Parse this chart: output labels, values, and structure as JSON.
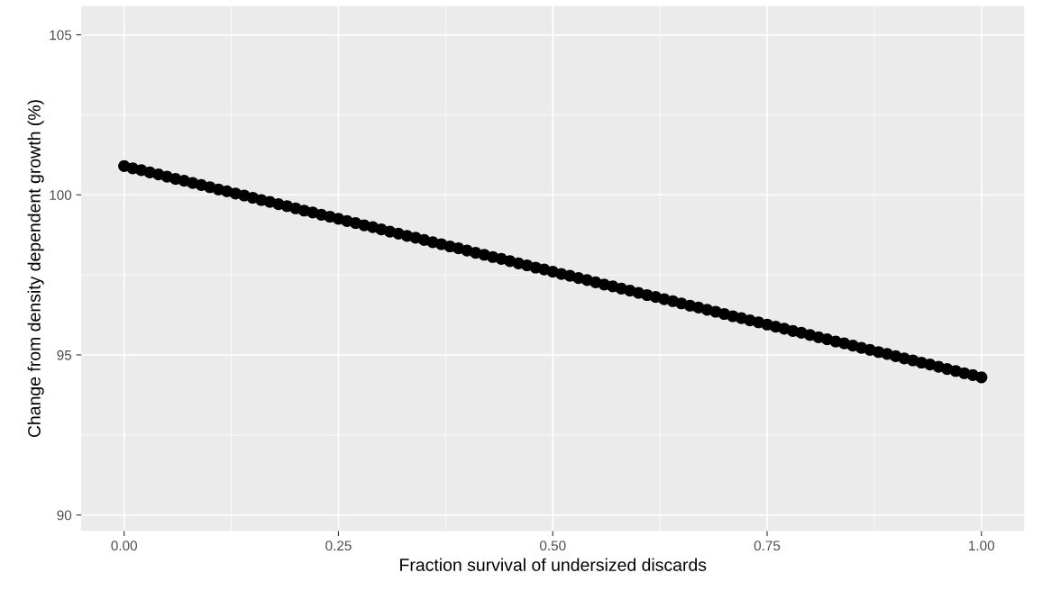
{
  "chart_data": {
    "type": "scatter",
    "xlabel": "Fraction survival of undersized discards",
    "ylabel": "Change from density dependent growth (%)",
    "x": [
      0,
      0.01,
      0.02,
      0.03,
      0.04,
      0.05,
      0.06,
      0.07,
      0.08,
      0.09,
      0.1,
      0.11,
      0.12,
      0.13,
      0.14,
      0.15,
      0.16,
      0.17,
      0.18,
      0.19,
      0.2,
      0.21,
      0.22,
      0.23,
      0.24,
      0.25,
      0.26,
      0.27,
      0.28,
      0.29,
      0.3,
      0.31,
      0.32,
      0.33,
      0.34,
      0.35,
      0.36,
      0.37,
      0.38,
      0.39,
      0.4,
      0.41,
      0.42,
      0.43,
      0.44,
      0.45,
      0.46,
      0.47,
      0.48,
      0.49,
      0.5,
      0.51,
      0.52,
      0.53,
      0.54,
      0.55,
      0.56,
      0.57,
      0.58,
      0.59,
      0.6,
      0.61,
      0.62,
      0.63,
      0.64,
      0.65,
      0.66,
      0.67,
      0.68,
      0.69,
      0.7,
      0.71,
      0.72,
      0.73,
      0.74,
      0.75,
      0.76,
      0.77,
      0.78,
      0.79,
      0.8,
      0.81,
      0.82,
      0.83,
      0.84,
      0.85,
      0.86,
      0.87,
      0.88,
      0.89,
      0.9,
      0.91,
      0.92,
      0.93,
      0.94,
      0.95,
      0.96,
      0.97,
      0.98,
      0.99,
      1
    ],
    "series": [
      {
        "color": "#000000",
        "values": [
          100.9,
          100.83,
          100.77,
          100.7,
          100.64,
          100.57,
          100.5,
          100.44,
          100.37,
          100.31,
          100.24,
          100.17,
          100.11,
          100.04,
          99.98,
          99.91,
          99.84,
          99.78,
          99.71,
          99.65,
          99.58,
          99.51,
          99.45,
          99.38,
          99.32,
          99.25,
          99.18,
          99.12,
          99.05,
          98.99,
          98.92,
          98.85,
          98.79,
          98.72,
          98.66,
          98.59,
          98.52,
          98.46,
          98.39,
          98.33,
          98.26,
          98.19,
          98.13,
          98.06,
          98.0,
          97.93,
          97.86,
          97.8,
          97.73,
          97.67,
          97.6,
          97.53,
          97.47,
          97.4,
          97.34,
          97.27,
          97.2,
          97.14,
          97.07,
          97.01,
          96.94,
          96.87,
          96.81,
          96.74,
          96.68,
          96.61,
          96.54,
          96.48,
          96.41,
          96.35,
          96.28,
          96.21,
          96.15,
          96.08,
          96.02,
          95.95,
          95.88,
          95.82,
          95.75,
          95.69,
          95.62,
          95.55,
          95.49,
          95.42,
          95.36,
          95.29,
          95.22,
          95.16,
          95.09,
          95.03,
          94.96,
          94.89,
          94.83,
          94.76,
          94.7,
          94.63,
          94.56,
          94.5,
          94.43,
          94.37,
          94.3
        ]
      }
    ],
    "xlim": [
      -0.05,
      1.05
    ],
    "ylim": [
      89.5,
      105.9
    ],
    "xticks": [
      {
        "value": 0,
        "label": "0.00"
      },
      {
        "value": 0.25,
        "label": "0.25"
      },
      {
        "value": 0.5,
        "label": "0.50"
      },
      {
        "value": 0.75,
        "label": "0.75"
      },
      {
        "value": 1,
        "label": "1.00"
      }
    ],
    "yticks": [
      90,
      95,
      100,
      105
    ],
    "grid": true,
    "marker": "circle"
  }
}
